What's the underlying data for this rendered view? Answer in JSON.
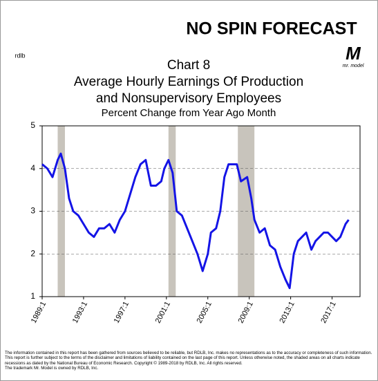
{
  "brand": "NO SPIN FORECAST",
  "logo_text": "mr. model",
  "corner_mark": "rdlb",
  "footnote": [
    "The information contained in this report has been gathered from sources believed to be reliable, but RDLB, Inc. makes no representations as to the accuracy or completeness of such information. This report is further subject to the terms of the disclaimer and limitations of liability contained on the last page of this report. Unless otherwise noted, the shaded areas on all charts indicate recessions as dated by the National Bureau of Economic Research. Copyright © 1989-2018 by RDLB, Inc. All rights reserved.",
    "The trademark Mr. Model is owned by RDLB, Inc."
  ],
  "chart_data": {
    "type": "line",
    "title": [
      "Chart 8",
      "Average Hourly Earnings Of Production",
      "and Nonsupervisory Employees"
    ],
    "subtitle": "Percent Change from Year Ago Month",
    "x": [
      1989.0,
      1989.5,
      1990.0,
      1990.5,
      1990.8,
      1991.2,
      1991.6,
      1992.0,
      1992.5,
      1993.0,
      1993.5,
      1994.0,
      1994.5,
      1995.0,
      1995.5,
      1996.0,
      1996.5,
      1997.0,
      1997.5,
      1998.0,
      1998.5,
      1999.0,
      1999.5,
      2000.0,
      2000.5,
      2000.8,
      2001.2,
      2001.6,
      2002.0,
      2002.5,
      2003.0,
      2003.5,
      2004.0,
      2004.5,
      2005.0,
      2005.3,
      2005.8,
      2006.2,
      2006.6,
      2007.0,
      2007.3,
      2007.8,
      2008.2,
      2008.8,
      2009.2,
      2009.5,
      2010.0,
      2010.5,
      2011.0,
      2011.5,
      2012.0,
      2012.5,
      2012.9,
      2013.3,
      2013.7,
      2014.1,
      2014.5,
      2015.0,
      2015.4,
      2015.8,
      2016.2,
      2016.6,
      2017.0,
      2017.4,
      2017.8,
      2018.3,
      2018.6
    ],
    "series": [
      {
        "color": "#1414e6",
        "values": [
          4.1,
          4.0,
          3.8,
          4.2,
          4.35,
          4.0,
          3.3,
          3.0,
          2.9,
          2.7,
          2.5,
          2.4,
          2.6,
          2.6,
          2.7,
          2.5,
          2.8,
          3.0,
          3.4,
          3.8,
          4.1,
          4.2,
          3.6,
          3.6,
          3.7,
          4.0,
          4.2,
          3.9,
          3.0,
          2.9,
          2.6,
          2.3,
          2.0,
          1.6,
          2.0,
          2.5,
          2.6,
          3.0,
          3.8,
          4.1,
          4.1,
          4.1,
          3.7,
          3.8,
          3.3,
          2.8,
          2.5,
          2.6,
          2.2,
          2.1,
          1.7,
          1.4,
          1.2,
          2.0,
          2.3,
          2.4,
          2.5,
          2.1,
          2.3,
          2.4,
          2.5,
          2.5,
          2.4,
          2.3,
          2.4,
          2.7,
          2.8
        ]
      }
    ],
    "shaded_periods": [
      [
        1990.5,
        1991.2
      ],
      [
        2001.2,
        2001.9
      ],
      [
        2007.9,
        2009.5
      ]
    ],
    "shade_color": "#c8c4bc",
    "xlim": [
      1989.0,
      2019.7
    ],
    "xticks": [
      {
        "value": 1989,
        "label": "1989:1"
      },
      {
        "value": 1993,
        "label": "1993:1"
      },
      {
        "value": 1997,
        "label": "1997:1"
      },
      {
        "value": 2001,
        "label": "2001:1"
      },
      {
        "value": 2005,
        "label": "2005:1"
      },
      {
        "value": 2009,
        "label": "2009:1"
      },
      {
        "value": 2013,
        "label": "2013:1"
      },
      {
        "value": 2017,
        "label": "2017:1"
      }
    ],
    "ylim": [
      1,
      5
    ],
    "yticks": [
      1,
      2,
      3,
      4,
      5
    ],
    "grid": true
  }
}
